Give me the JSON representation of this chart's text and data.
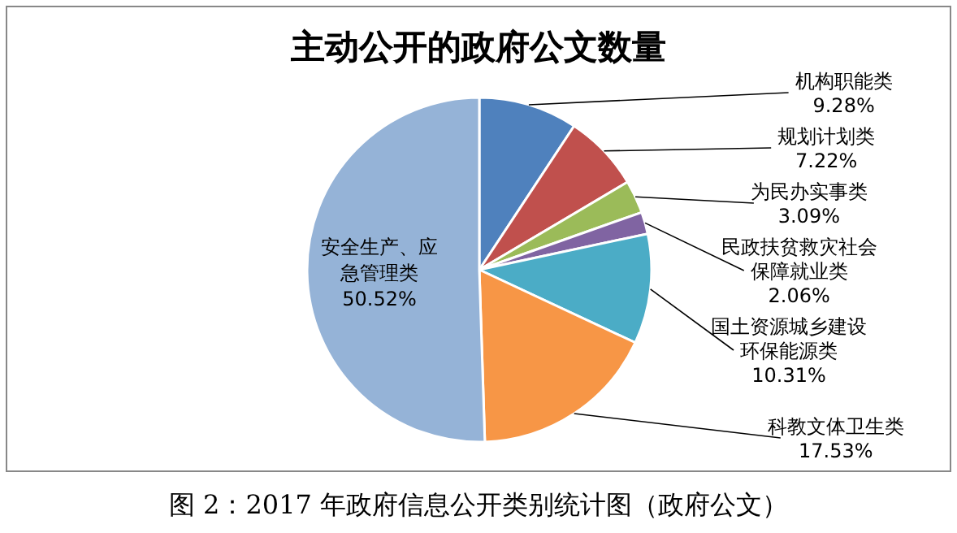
{
  "chart_data": {
    "type": "pie",
    "title": "主动公开的政府公文数量",
    "categories": [
      "机构职能类",
      "规划计划类",
      "为民办实事类",
      "民政扶贫救灾社会保障就业类",
      "国土资源城乡建设环保能源类",
      "科教文体卫生类",
      "安全生产、应急管理类"
    ],
    "values": [
      9.28,
      7.22,
      3.09,
      2.06,
      10.31,
      17.53,
      50.52
    ],
    "value_labels": [
      "9.28%",
      "7.22%",
      "3.09%",
      "2.06%",
      "10.31%",
      "17.53%",
      "50.52%"
    ],
    "colors": [
      "#4f81bd",
      "#c0504d",
      "#9bbb59",
      "#8064a2",
      "#4bacc6",
      "#f79646",
      "#95b3d7"
    ],
    "annotations": [
      "图 2：2017 年政府信息公开类别统计图（政府公文）"
    ]
  }
}
